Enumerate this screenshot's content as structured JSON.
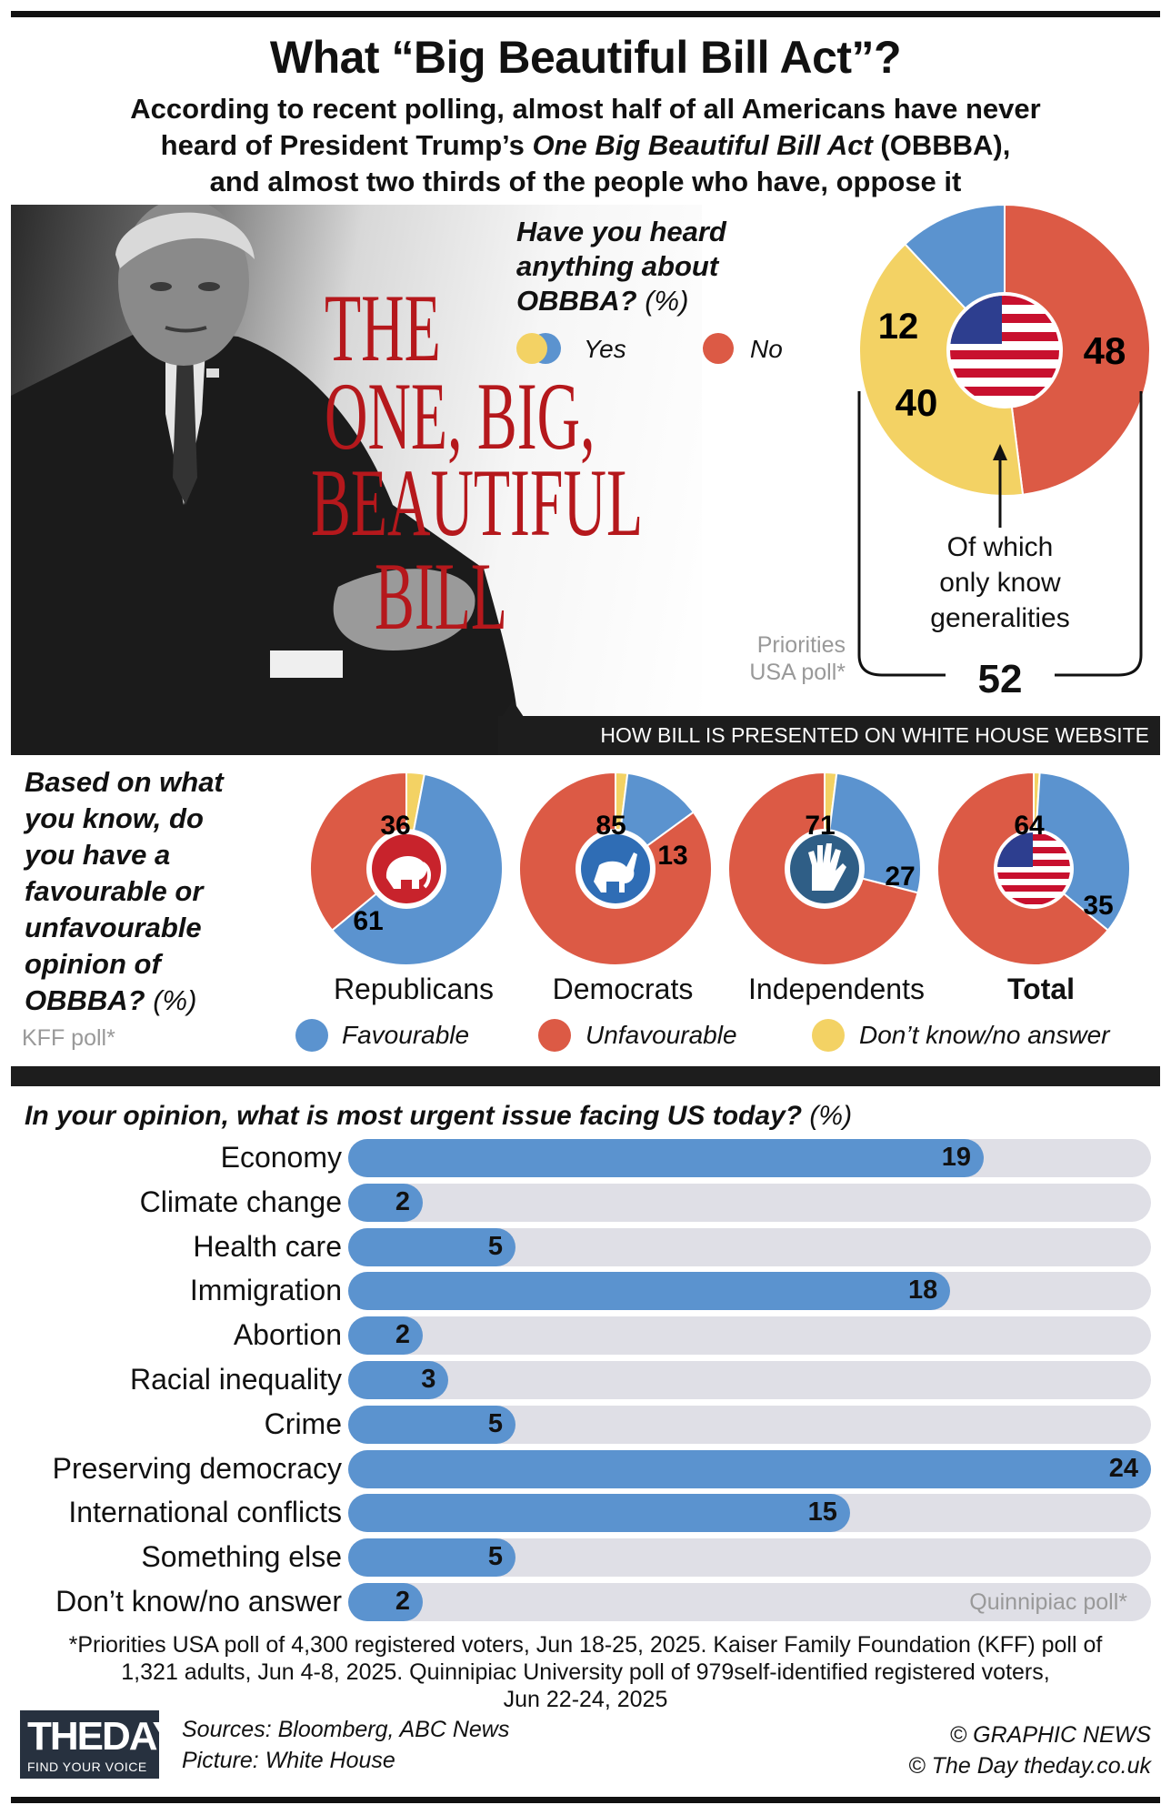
{
  "title": "What “Big Beautiful Bill Act”?",
  "subtitle": {
    "line1": "According to recent polling, almost half of all Americans have never",
    "line2_pre": "heard of President Trump’s ",
    "line2_italic": "One Big Beautiful Bill Act",
    "line2_post": " (OBBBA),",
    "line3": "and almost two thirds of the people who have, oppose it"
  },
  "photo": {
    "bill_title_lines": [
      "THE",
      "ONE, BIG,",
      "BEAUTIFUL",
      "BILL"
    ],
    "banner": "HOW BILL IS PRESENTED ON WHITE HOUSE WEBSITE"
  },
  "colors": {
    "blue": "#5b93cf",
    "red": "#dc5a45",
    "yellow": "#f3d264",
    "track": "#dfdfe6",
    "dark": "#1d1d1d"
  },
  "heard": {
    "question_lines": [
      "Have you heard",
      "anything about",
      "OBBBA?"
    ],
    "unit": "(%)",
    "legend": {
      "yes": "Yes",
      "no": "No"
    },
    "annotation_lines": [
      "Of which",
      "only know",
      "generalities"
    ],
    "source_lines": [
      "Priorities",
      "USA poll*"
    ],
    "yes_total": "52"
  },
  "favourability": {
    "question_lines": [
      "Based on what",
      "you know, do",
      "you have a",
      "favourable or",
      "unfavourable",
      "opinion of",
      "OBBBA?"
    ],
    "unit": "(%)",
    "source": "KFF poll*",
    "legend": {
      "favourable": "Favourable",
      "unfavourable": "Unfavourable",
      "dont_know": "Don’t know/no answer"
    }
  },
  "urgent": {
    "question": "In your opinion, what is most urgent issue facing US today?",
    "unit": "(%)",
    "source": "Quinnipiac poll*"
  },
  "chart_data": [
    {
      "type": "pie",
      "title": "Have you heard anything about OBBBA? (%)",
      "categories": [
        "No",
        "Yes (only know generalities)",
        "Yes (other)"
      ],
      "values": [
        48,
        40,
        12
      ],
      "yes_total": 52
    },
    {
      "type": "pie",
      "title": "Based on what you know, do you have a favourable or unfavourable opinion of OBBBA? (%)",
      "categories": [
        "Republicans",
        "Democrats",
        "Independents",
        "Total"
      ],
      "series": [
        {
          "name": "Favourable",
          "values": [
            61,
            13,
            27,
            35
          ]
        },
        {
          "name": "Unfavourable",
          "values": [
            36,
            85,
            71,
            64
          ]
        },
        {
          "name": "Don’t know/no answer",
          "values": [
            3,
            2,
            2,
            1
          ]
        }
      ]
    },
    {
      "type": "bar",
      "title": "In your opinion, what is most urgent issue facing US today? (%)",
      "categories": [
        "Economy",
        "Climate change",
        "Health care",
        "Immigration",
        "Abortion",
        "Racial inequality",
        "Crime",
        "Preserving democracy",
        "International conflicts",
        "Something else",
        "Don’t know/no answer"
      ],
      "values": [
        19,
        2,
        5,
        18,
        2,
        3,
        5,
        24,
        15,
        5,
        2
      ],
      "xlim": [
        0,
        24
      ]
    }
  ],
  "footnote": {
    "line1": "*Priorities USA poll of 4,300 registered voters, Jun 18-25, 2025. Kaiser Family Foundation (KFF) poll of",
    "line2": "1,321 adults, Jun 4-8, 2025. Quinnipiac University poll of 979self-identified registered voters,",
    "line3": "Jun 22-24, 2025"
  },
  "footer": {
    "logo_text": "THEDAY",
    "logo_tagline": "FIND YOUR VOICE",
    "sources": "Sources: Bloomberg, ABC News",
    "picture": "Picture: White House",
    "credit1": "© GRAPHIC NEWS",
    "credit2": "© The Day   theday.co.uk"
  },
  "icons": [
    "us-flag-icon",
    "elephant-icon",
    "donkey-icon",
    "raised-hand-icon",
    "arrow-up-icon"
  ]
}
